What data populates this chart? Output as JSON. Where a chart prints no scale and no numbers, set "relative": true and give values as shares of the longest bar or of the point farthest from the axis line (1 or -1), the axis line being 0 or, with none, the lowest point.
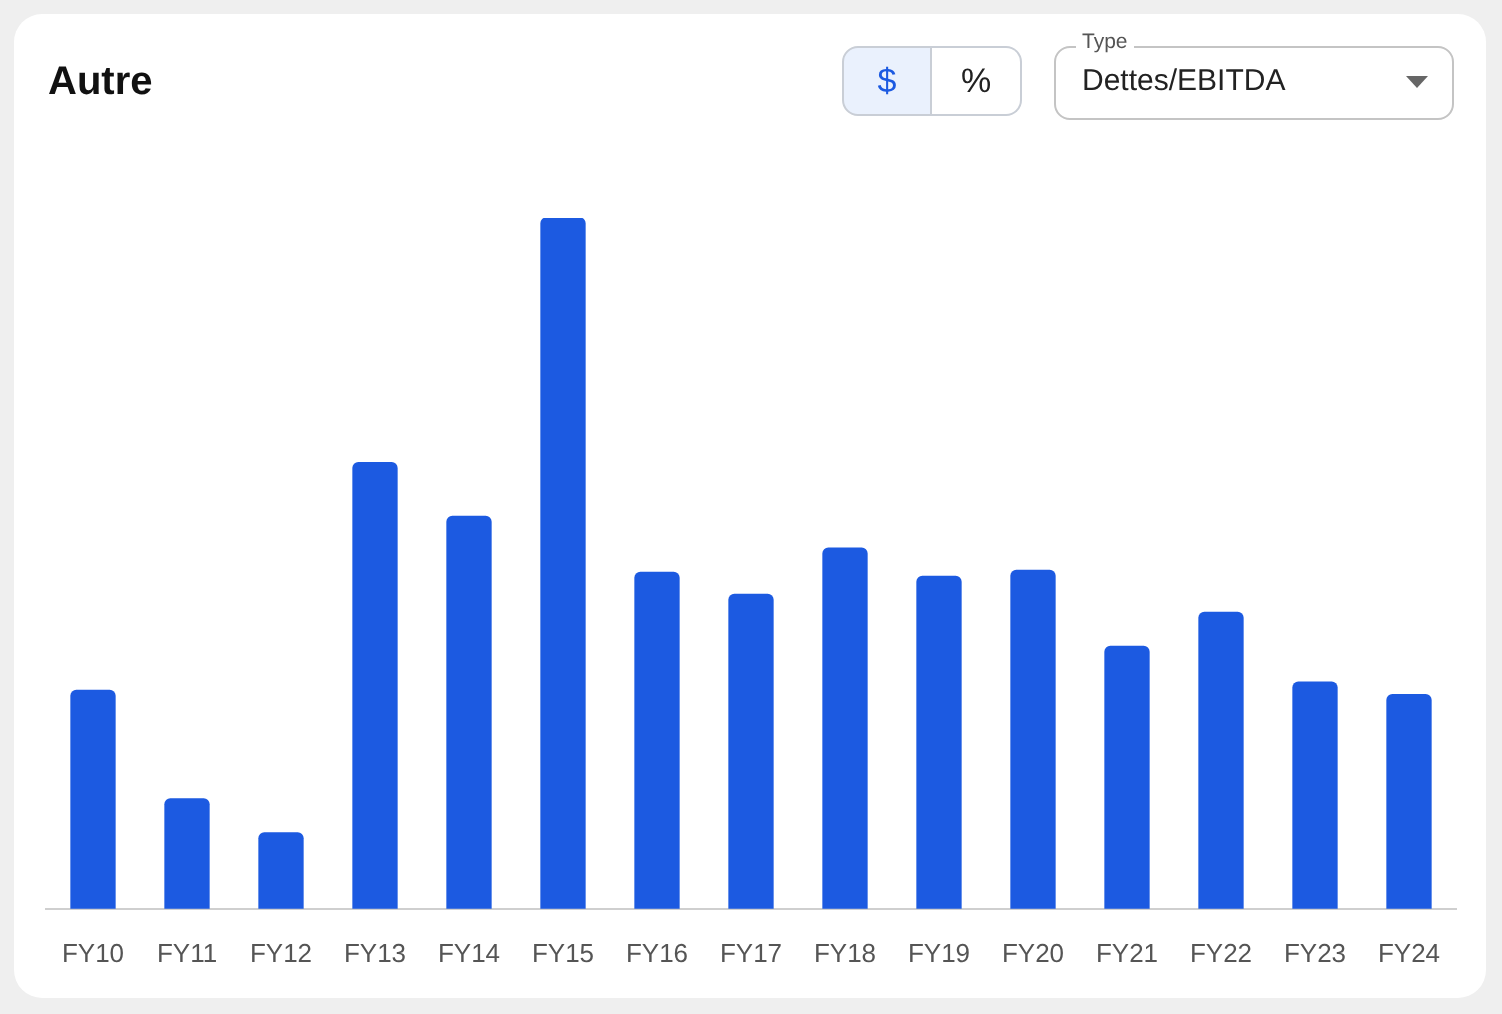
{
  "chart_data": {
    "type": "bar",
    "title": "Autre",
    "relative": true,
    "color": "#1c5ae1",
    "categories": [
      "FY10",
      "FY11",
      "FY12",
      "FY13",
      "FY14",
      "FY15",
      "FY16",
      "FY17",
      "FY18",
      "FY19",
      "FY20",
      "FY21",
      "FY22",
      "FY23",
      "FY24"
    ],
    "values": [
      0.316,
      0.159,
      0.11,
      0.646,
      0.568,
      1,
      0.487,
      0.455,
      0.522,
      0.481,
      0.49,
      0.38,
      0.429,
      0.328,
      0.31
    ],
    "annotations": [
      "$",
      "%",
      "Type",
      "Dettes/EBITDA"
    ]
  }
}
